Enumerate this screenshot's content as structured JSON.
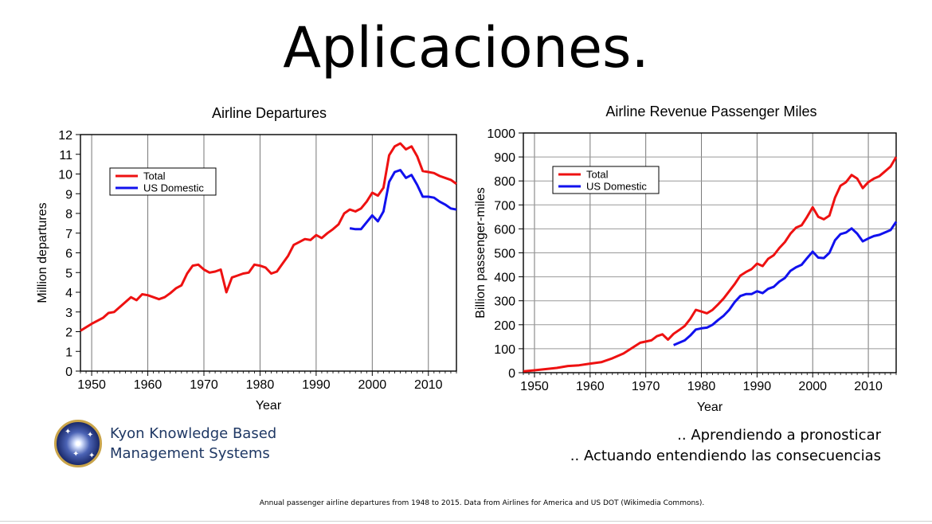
{
  "slide": {
    "title": "Aplicaciones.",
    "company_line1": "Kyon Knowledge Based",
    "company_line2": "Management Systems",
    "tagline1": ".. Aprendiendo a pronosticar",
    "tagline2": ".. Actuando entendiendo las consecuencias",
    "caption": "Annual passenger airline departures from 1948 to 2015. Data from Airlines for America and US DOT (Wikimedia Commons).",
    "logo_icon": "star-orb-logo-icon"
  },
  "chart_data": [
    {
      "type": "line",
      "title": "Airline Departures",
      "xlabel": "Year",
      "ylabel": "Million departures",
      "xlim": [
        1948,
        2015
      ],
      "ylim": [
        0,
        12
      ],
      "xticks": [
        1950,
        1960,
        1970,
        1980,
        1990,
        2000,
        2010
      ],
      "yticks": [
        0,
        1,
        2,
        3,
        4,
        5,
        6,
        7,
        8,
        9,
        10,
        11,
        12
      ],
      "grid": "vertical",
      "legend": "top-left",
      "series": [
        {
          "name": "Total",
          "color": "#ee1111",
          "x": [
            1948,
            1950,
            1952,
            1953,
            1954,
            1956,
            1957,
            1958,
            1959,
            1960,
            1961,
            1962,
            1963,
            1964,
            1965,
            1966,
            1967,
            1968,
            1969,
            1970,
            1971,
            1972,
            1973,
            1974,
            1975,
            1976,
            1977,
            1978,
            1979,
            1980,
            1981,
            1982,
            1983,
            1984,
            1985,
            1986,
            1987,
            1988,
            1989,
            1990,
            1991,
            1992,
            1993,
            1994,
            1995,
            1996,
            1997,
            1998,
            1999,
            2000,
            2001,
            2002,
            2003,
            2004,
            2005,
            2006,
            2007,
            2008,
            2009,
            2010,
            2011,
            2012,
            2013,
            2014,
            2015
          ],
          "values": [
            2.05,
            2.4,
            2.7,
            2.95,
            3.0,
            3.5,
            3.75,
            3.6,
            3.9,
            3.85,
            3.75,
            3.65,
            3.75,
            3.95,
            4.2,
            4.35,
            4.95,
            5.35,
            5.4,
            5.15,
            5.0,
            5.05,
            5.15,
            4.0,
            4.75,
            4.85,
            4.95,
            5.0,
            5.4,
            5.35,
            5.25,
            4.95,
            5.05,
            5.45,
            5.85,
            6.4,
            6.55,
            6.7,
            6.65,
            6.9,
            6.75,
            7.0,
            7.2,
            7.45,
            8.0,
            8.2,
            8.1,
            8.25,
            8.6,
            9.05,
            8.9,
            9.3,
            10.95,
            11.4,
            11.55,
            11.25,
            11.4,
            10.9,
            10.15,
            10.1,
            10.05,
            9.9,
            9.8,
            9.7,
            9.5
          ]
        },
        {
          "name": "US Domestic",
          "color": "#1111ee",
          "x": [
            1996,
            1997,
            1998,
            1999,
            2000,
            2001,
            2002,
            2003,
            2004,
            2005,
            2006,
            2007,
            2008,
            2009,
            2010,
            2011,
            2012,
            2013,
            2014,
            2015
          ],
          "values": [
            7.25,
            7.2,
            7.2,
            7.55,
            7.9,
            7.6,
            8.1,
            9.6,
            10.1,
            10.2,
            9.8,
            9.95,
            9.45,
            8.85,
            8.85,
            8.8,
            8.6,
            8.45,
            8.25,
            8.2
          ]
        }
      ]
    },
    {
      "type": "line",
      "title": "Airline Revenue Passenger Miles",
      "xlabel": "Year",
      "ylabel": "Billion passenger-miles",
      "xlim": [
        1948,
        2015
      ],
      "ylim": [
        0,
        1000
      ],
      "xticks": [
        1950,
        1960,
        1970,
        1980,
        1990,
        2000,
        2010
      ],
      "yticks": [
        0,
        100,
        200,
        300,
        400,
        500,
        600,
        700,
        800,
        900,
        1000
      ],
      "grid": "both",
      "legend": "top-left",
      "series": [
        {
          "name": "Total",
          "color": "#ee1111",
          "x": [
            1948,
            1950,
            1952,
            1954,
            1956,
            1958,
            1960,
            1962,
            1964,
            1966,
            1968,
            1969,
            1970,
            1971,
            1972,
            1973,
            1974,
            1975,
            1976,
            1977,
            1978,
            1979,
            1980,
            1981,
            1982,
            1983,
            1984,
            1985,
            1986,
            1987,
            1988,
            1989,
            1990,
            1991,
            1992,
            1993,
            1994,
            1995,
            1996,
            1997,
            1998,
            1999,
            2000,
            2001,
            2002,
            2003,
            2004,
            2005,
            2006,
            2007,
            2008,
            2009,
            2010,
            2011,
            2012,
            2013,
            2014,
            2015
          ],
          "values": [
            6,
            10,
            15,
            20,
            28,
            31,
            38,
            44,
            60,
            80,
            110,
            125,
            130,
            135,
            152,
            160,
            138,
            162,
            178,
            195,
            225,
            262,
            255,
            248,
            262,
            285,
            310,
            340,
            370,
            405,
            420,
            432,
            455,
            445,
            475,
            490,
            520,
            545,
            580,
            605,
            615,
            650,
            690,
            650,
            640,
            655,
            730,
            780,
            795,
            825,
            810,
            770,
            795,
            810,
            820,
            840,
            860,
            900
          ]
        },
        {
          "name": "US Domestic",
          "color": "#1111ee",
          "x": [
            1975,
            1976,
            1977,
            1978,
            1979,
            1980,
            1981,
            1982,
            1983,
            1984,
            1985,
            1986,
            1987,
            1988,
            1989,
            1990,
            1991,
            1992,
            1993,
            1994,
            1995,
            1996,
            1997,
            1998,
            1999,
            2000,
            2001,
            2002,
            2003,
            2004,
            2005,
            2006,
            2007,
            2008,
            2009,
            2010,
            2011,
            2012,
            2013,
            2014,
            2015
          ],
          "values": [
            115,
            125,
            135,
            155,
            180,
            185,
            188,
            200,
            220,
            238,
            262,
            295,
            320,
            328,
            328,
            340,
            332,
            350,
            358,
            380,
            395,
            425,
            440,
            450,
            478,
            505,
            480,
            478,
            500,
            552,
            578,
            585,
            602,
            580,
            548,
            560,
            570,
            575,
            585,
            595,
            630
          ]
        }
      ]
    }
  ]
}
